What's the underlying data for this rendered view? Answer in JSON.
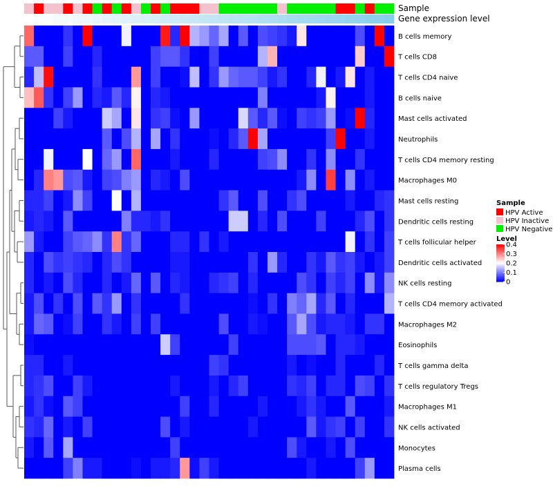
{
  "chart_data": {
    "type": "heatmap",
    "title": "",
    "annotation_labels": {
      "sample": "Sample",
      "gene": "Gene expression level"
    },
    "rows": [
      "B cells memory",
      "T cells CD8",
      "T cells CD4 naive",
      "B cells naive",
      "Mast cells activated",
      "Neutrophils",
      "T cells CD4 memory resting",
      "Macrophages M0",
      "Mast cells resting",
      "Dendritic cells resting",
      "T cells follicular helper",
      "Dendritic cells activated",
      "NK cells resting",
      "T cells CD4 memory activated",
      "Macrophages M2",
      "Eosinophils",
      "T cells gamma delta",
      "T cells regulatory  Tregs",
      "Macrophages M1",
      "NK cells activated",
      "Monocytes",
      "Plasma cells"
    ],
    "sample_annotation": [
      "I",
      "A",
      "I",
      "I",
      "A",
      "I",
      "A",
      "N",
      "A",
      "N",
      "A",
      "I",
      "N",
      "A",
      "N",
      "A",
      "A",
      "A",
      "I",
      "I",
      "N",
      "N",
      "N",
      "N",
      "N",
      "N",
      "I",
      "N",
      "N",
      "N",
      "N",
      "N",
      "A",
      "A",
      "N",
      "A",
      "N",
      "N"
    ],
    "gene_expression_level": [
      0.0,
      0.03,
      0.05,
      0.08,
      0.11,
      0.14,
      0.16,
      0.19,
      0.22,
      0.24,
      0.27,
      0.3,
      0.32,
      0.35,
      0.38,
      0.41,
      0.43,
      0.46,
      0.49,
      0.51,
      0.54,
      0.57,
      0.59,
      0.62,
      0.65,
      0.68,
      0.7,
      0.73,
      0.76,
      0.78,
      0.81,
      0.84,
      0.86,
      0.89,
      0.92,
      0.95,
      0.97,
      1.0
    ],
    "values": [
      [
        0.32,
        0,
        0,
        0,
        0.04,
        0,
        0.4,
        0,
        0,
        0,
        0.19,
        0,
        0,
        0,
        0.38,
        0.03,
        0.4,
        0.14,
        0.12,
        0.08,
        0.13,
        0,
        0.07,
        0,
        0.06,
        0.05,
        0.04,
        0.02,
        0.22,
        0,
        0,
        0,
        0,
        0,
        0.06,
        0,
        0.4,
        0
      ],
      [
        0.07,
        0.07,
        0,
        0,
        0.05,
        0,
        0,
        0.03,
        0,
        0,
        0,
        0,
        0,
        0.05,
        0.07,
        0.07,
        0.04,
        0,
        0,
        0.05,
        0,
        0,
        0,
        0,
        0.14,
        0.26,
        0,
        0,
        0,
        0,
        0,
        0,
        0,
        0,
        0.24,
        0,
        0,
        0.4
      ],
      [
        0.03,
        0.15,
        0.39,
        0,
        0,
        0,
        0,
        0.04,
        0,
        0,
        0,
        0.28,
        0,
        0.05,
        0,
        0,
        0.01,
        0.15,
        0,
        0.04,
        0.12,
        0.08,
        0.07,
        0.07,
        0.05,
        0.02,
        0.04,
        0,
        0,
        0.03,
        0.19,
        0,
        0.02,
        0.22,
        0,
        0.02,
        0,
        0
      ],
      [
        0.25,
        0.33,
        0.04,
        0,
        0.05,
        0.12,
        0,
        0.03,
        0.02,
        0.07,
        0.03,
        0.21,
        0,
        0.03,
        0.02,
        0,
        0,
        0,
        0,
        0,
        0,
        0,
        0,
        0,
        0.1,
        0,
        0,
        0,
        0,
        0,
        0.02,
        0.21,
        0,
        0,
        0,
        0.02,
        0,
        0
      ],
      [
        0,
        0,
        0,
        0.05,
        0.02,
        0,
        0,
        0,
        0.16,
        0.13,
        0,
        0.22,
        0,
        0.04,
        0.05,
        0.01,
        0,
        0.12,
        0,
        0,
        0,
        0,
        0.17,
        0.07,
        0.03,
        0.07,
        0.01,
        0,
        0.05,
        0.04,
        0.05,
        0.12,
        0,
        0.01,
        0.4,
        0.03,
        0,
        0
      ],
      [
        0,
        0,
        0,
        0,
        0,
        0,
        0,
        0,
        0.07,
        0,
        0.06,
        0.14,
        0,
        0.13,
        0,
        0.04,
        0,
        0,
        0,
        0.01,
        0,
        0.03,
        0.07,
        0.4,
        0.13,
        0,
        0,
        0,
        0,
        0,
        0,
        0.05,
        0.4,
        0,
        0,
        0.02,
        0,
        0
      ],
      [
        0,
        0,
        0.19,
        0,
        0,
        0,
        0.2,
        0,
        0.08,
        0.12,
        0,
        0.32,
        0,
        0,
        0,
        0.02,
        0,
        0,
        0,
        0.03,
        0,
        0,
        0,
        0,
        0.05,
        0.06,
        0.11,
        0,
        0,
        0.04,
        0,
        0.11,
        0,
        0,
        0.04,
        0,
        0,
        0
      ],
      [
        0,
        0.03,
        0.3,
        0.28,
        0.06,
        0.07,
        0.02,
        0,
        0.05,
        0.06,
        0.1,
        0.12,
        0,
        0.03,
        0.02,
        0,
        0.06,
        0,
        0,
        0,
        0,
        0,
        0,
        0,
        0,
        0,
        0,
        0,
        0.02,
        0.11,
        0,
        0.35,
        0,
        0.11,
        0,
        0.02,
        0,
        0
      ],
      [
        0.03,
        0.03,
        0.05,
        0,
        0.02,
        0.11,
        0.05,
        0,
        0,
        0.2,
        0,
        0.14,
        0,
        0,
        0,
        0,
        0,
        0,
        0,
        0,
        0.04,
        0.07,
        0,
        0,
        0.06,
        0,
        0,
        0.04,
        0.06,
        0,
        0,
        0,
        0,
        0.02,
        0,
        0,
        0.03,
        0.04
      ],
      [
        0.02,
        0.03,
        0.02,
        0,
        0.07,
        0,
        0,
        0,
        0,
        0,
        0.1,
        0.03,
        0.03,
        0.02,
        0.04,
        0,
        0,
        0,
        0,
        0,
        0,
        0.16,
        0.16,
        0,
        0.03,
        0,
        0.06,
        0,
        0,
        0,
        0.05,
        0,
        0,
        0,
        0.03,
        0.06,
        0,
        0.04
      ],
      [
        0.12,
        0.02,
        0,
        0,
        0.05,
        0.07,
        0.08,
        0.11,
        0.04,
        0.3,
        0.04,
        0.08,
        0,
        0,
        0,
        0.03,
        0.03,
        0,
        0.04,
        0,
        0.02,
        0,
        0,
        0,
        0,
        0,
        0,
        0,
        0,
        0,
        0,
        0,
        0,
        0.19,
        0,
        0.04,
        0,
        0.05
      ],
      [
        0.03,
        0,
        0.06,
        0.04,
        0.05,
        0.04,
        0.03,
        0,
        0.03,
        0.06,
        0.04,
        0,
        0,
        0,
        0,
        0.02,
        0.02,
        0,
        0,
        0,
        0,
        0,
        0,
        0.04,
        0,
        0.12,
        0.03,
        0,
        0,
        0.04,
        0.02,
        0.07,
        0.04,
        0.05,
        0.02,
        0,
        0.02,
        0.05
      ],
      [
        0.03,
        0,
        0.02,
        0,
        0.06,
        0.03,
        0,
        0,
        0.03,
        0,
        0.02,
        0.08,
        0,
        0.07,
        0,
        0.03,
        0.02,
        0,
        0,
        0.03,
        0.04,
        0.05,
        0,
        0.03,
        0,
        0,
        0,
        0,
        0.06,
        0.04,
        0,
        0.05,
        0.03,
        0.05,
        0,
        0.11,
        0.02,
        0.11
      ],
      [
        0.02,
        0.06,
        0,
        0.04,
        0,
        0.06,
        0,
        0.07,
        0.04,
        0.12,
        0,
        0.04,
        0,
        0,
        0,
        0,
        0.04,
        0,
        0,
        0,
        0,
        0,
        0,
        0.01,
        0,
        0.04,
        0,
        0.1,
        0.08,
        0.13,
        0.03,
        0.07,
        0,
        0.03,
        0,
        0,
        0,
        0.14
      ],
      [
        0.02,
        0.08,
        0.07,
        0,
        0.01,
        0.05,
        0,
        0,
        0.04,
        0.02,
        0,
        0.05,
        0,
        0.05,
        0,
        0,
        0,
        0,
        0,
        0,
        0.06,
        0,
        0,
        0.02,
        0.01,
        0,
        0,
        0.07,
        0.13,
        0.06,
        0.02,
        0.03,
        0.03,
        0.02,
        0,
        0.04,
        0.04,
        0
      ],
      [
        0.01,
        0,
        0,
        0,
        0,
        0,
        0,
        0,
        0,
        0,
        0,
        0,
        0,
        0,
        0.16,
        0.05,
        0,
        0,
        0,
        0,
        0,
        0.05,
        0,
        0,
        0,
        0,
        0,
        0.06,
        0.06,
        0.06,
        0.07,
        0,
        0.03,
        0.03,
        0.02,
        0,
        0,
        0
      ],
      [
        0.03,
        0.03,
        0,
        0,
        0.02,
        0,
        0,
        0,
        0,
        0,
        0,
        0,
        0,
        0,
        0,
        0,
        0,
        0,
        0,
        0.05,
        0.04,
        0,
        0,
        0,
        0,
        0,
        0,
        0.02,
        0,
        0.01,
        0,
        0,
        0.03,
        0,
        0,
        0,
        0.03,
        0
      ],
      [
        0.03,
        0.04,
        0.06,
        0,
        0,
        0.05,
        0.02,
        0,
        0,
        0,
        0,
        0,
        0,
        0,
        0,
        0.02,
        0,
        0,
        0,
        0.02,
        0,
        0.03,
        0.05,
        0,
        0,
        0,
        0,
        0.04,
        0.03,
        0.05,
        0,
        0.03,
        0.03,
        0,
        0.06,
        0.05,
        0,
        0.04
      ],
      [
        0.02,
        0.04,
        0.01,
        0,
        0.07,
        0.05,
        0,
        0,
        0,
        0,
        0,
        0,
        0,
        0,
        0,
        0,
        0.05,
        0,
        0,
        0.03,
        0,
        0,
        0,
        0,
        0.02,
        0,
        0,
        0,
        0.02,
        0.04,
        0.02,
        0,
        0,
        0.07,
        0,
        0,
        0,
        0.02
      ],
      [
        0.04,
        0.03,
        0.08,
        0,
        0.02,
        0,
        0.05,
        0,
        0,
        0,
        0,
        0,
        0,
        0,
        0.06,
        0,
        0.02,
        0,
        0,
        0,
        0,
        0,
        0,
        0.02,
        0,
        0,
        0,
        0,
        0,
        0.07,
        0.02,
        0.04,
        0.05,
        0,
        0.05,
        0,
        0,
        0.04
      ],
      [
        0.02,
        0,
        0.07,
        0,
        0.13,
        0,
        0,
        0,
        0,
        0,
        0,
        0,
        0,
        0,
        0,
        0.05,
        0,
        0,
        0,
        0,
        0,
        0,
        0,
        0,
        0,
        0,
        0,
        0.06,
        0.02,
        0,
        0,
        0.02,
        0,
        0.06,
        0,
        0,
        0,
        0
      ],
      [
        0,
        0,
        0,
        0,
        0.05,
        0.1,
        0.02,
        0.02,
        0,
        0,
        0,
        0.01,
        0,
        0.02,
        0.02,
        0.03,
        0.28,
        0.01,
        0.05,
        0.02,
        0,
        0,
        0,
        0,
        0,
        0,
        0,
        0,
        0,
        0.02,
        0,
        0,
        0,
        0,
        0.05,
        0.12,
        0,
        0
      ]
    ],
    "legend": {
      "sample_title": "Sample",
      "sample_entries": [
        {
          "key": "A",
          "label": "HPV Active",
          "color": "#ff0000"
        },
        {
          "key": "I",
          "label": "HPV Inactive",
          "color": "#f4c2cf"
        },
        {
          "key": "N",
          "label": "HPV Negative",
          "color": "#00ee00"
        }
      ],
      "level_title": "Level",
      "level_ticks": [
        "0.4",
        "0.3",
        "0.2",
        "0.1",
        "0"
      ],
      "level_range": [
        0,
        0.4
      ]
    },
    "colors": {
      "low": "#0000ff",
      "mid": "#ffffff",
      "high": "#ff0000",
      "gene_low": "#ffffff",
      "gene_high": "#87ceeb"
    }
  }
}
